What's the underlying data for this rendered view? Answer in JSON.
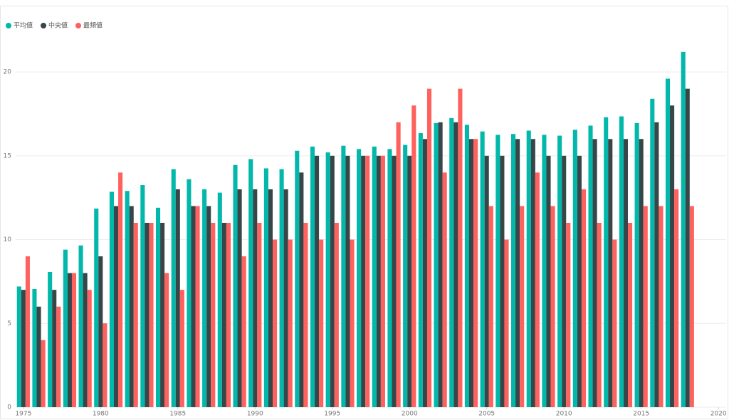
{
  "chart_data": {
    "type": "bar",
    "x": [
      1975,
      1976,
      1977,
      1978,
      1979,
      1980,
      1981,
      1982,
      1983,
      1984,
      1985,
      1986,
      1987,
      1988,
      1989,
      1990,
      1991,
      1992,
      1993,
      1994,
      1995,
      1996,
      1997,
      1998,
      1999,
      2000,
      2001,
      2002,
      2003,
      2004,
      2005,
      2006,
      2007,
      2008,
      2009,
      2010,
      2011,
      2012,
      2013,
      2014,
      2015,
      2016,
      2017,
      2018
    ],
    "series": [
      {
        "name": "平均値",
        "color": "#01B8AA",
        "values": [
          7.2,
          7.05,
          8.07,
          9.4,
          9.65,
          11.85,
          12.85,
          12.9,
          13.25,
          11.9,
          14.2,
          13.6,
          13.0,
          12.8,
          14.45,
          14.8,
          14.25,
          14.2,
          15.3,
          15.55,
          15.2,
          15.6,
          15.4,
          15.55,
          15.4,
          15.65,
          16.35,
          16.95,
          17.25,
          16.85,
          16.45,
          16.25,
          16.3,
          16.5,
          16.25,
          16.2,
          16.55,
          16.8,
          17.3,
          17.35,
          16.95,
          18.4,
          19.6,
          21.2
        ]
      },
      {
        "name": "中央値",
        "color": "#374649",
        "values": [
          7,
          6,
          7,
          8,
          8,
          9,
          12,
          12,
          11,
          11,
          13,
          12,
          12,
          11,
          13,
          13,
          13,
          13,
          14,
          15,
          15,
          15,
          15,
          15,
          15,
          15,
          16,
          17,
          17,
          16,
          15,
          15,
          16,
          16,
          15,
          15,
          15,
          16,
          16,
          16,
          16,
          17,
          18,
          19
        ]
      },
      {
        "name": "最頻値",
        "color": "#FD625E",
        "values": [
          9,
          4,
          6,
          8,
          7,
          5,
          14,
          11,
          11,
          8,
          7,
          12,
          11,
          11,
          9,
          11,
          10,
          10,
          11,
          10,
          11,
          10,
          15,
          15,
          17,
          18,
          19,
          14,
          19,
          16,
          12,
          10,
          12,
          14,
          12,
          11,
          13,
          11,
          10,
          11,
          12,
          12,
          13,
          12
        ]
      }
    ],
    "xlim": [
      1974.5,
      2020.5
    ],
    "xticks": [
      1975,
      1980,
      1985,
      1990,
      1995,
      2000,
      2005,
      2010,
      2015,
      2020
    ],
    "ylim": [
      0,
      22
    ],
    "yticks": [
      0,
      5,
      10,
      15,
      20
    ],
    "grid": true,
    "legend": "top-left"
  }
}
